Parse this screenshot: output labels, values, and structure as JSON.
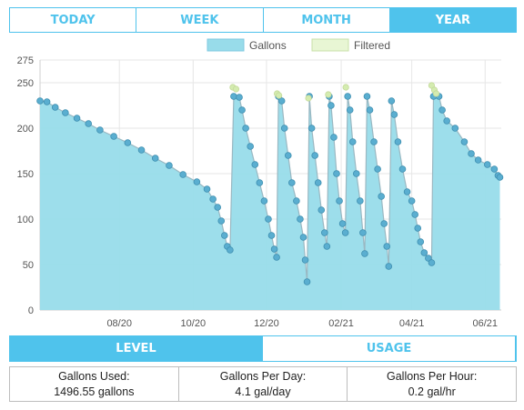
{
  "range_tabs": [
    "TODAY",
    "WEEK",
    "MONTH",
    "YEAR"
  ],
  "range_active": "YEAR",
  "view_tabs": [
    "LEVEL",
    "USAGE"
  ],
  "view_active": "LEVEL",
  "colors": {
    "accent": "#4fc3ec",
    "gallons_fill": "#98dcea",
    "gallons_point": "#5aaed0",
    "filtered_fill": "#e8f6d4",
    "filtered_point": "#d4ecb0"
  },
  "stats": [
    {
      "label": "Gallons Used:",
      "value": "1496.55 gallons"
    },
    {
      "label": "Gallons Per Day:",
      "value": "4.1 gal/day"
    },
    {
      "label": "Gallons Per Hour:",
      "value": "0.2 gal/hr"
    }
  ],
  "chart_data": {
    "type": "area",
    "legend": [
      {
        "name": "Gallons",
        "color": "#98dcea"
      },
      {
        "name": "Filtered",
        "color": "#e8f6d4"
      }
    ],
    "legend_position": "top-center",
    "grid": true,
    "ylim": [
      0,
      275
    ],
    "yticks": [
      0,
      50,
      100,
      150,
      200,
      250,
      275
    ],
    "xlim": [
      0,
      100
    ],
    "xticks": [
      {
        "label": "08/20",
        "x": 17.2
      },
      {
        "label": "10/20",
        "x": 33.2
      },
      {
        "label": "12/20",
        "x": 49.1
      },
      {
        "label": "02/21",
        "x": 65.3
      },
      {
        "label": "04/21",
        "x": 80.6
      },
      {
        "label": "06/21",
        "x": 96.5
      }
    ],
    "series": [
      {
        "name": "Gallons",
        "points": [
          [
            0,
            230
          ],
          [
            1.5,
            229
          ],
          [
            3.3,
            223
          ],
          [
            5.5,
            217
          ],
          [
            8,
            211
          ],
          [
            10.5,
            205
          ],
          [
            13,
            198
          ],
          [
            16,
            191
          ],
          [
            19,
            184
          ],
          [
            22,
            176
          ],
          [
            25,
            167
          ],
          [
            28,
            159
          ],
          [
            31,
            149
          ],
          [
            34,
            141
          ],
          [
            36.2,
            133
          ],
          [
            37.5,
            122
          ],
          [
            38.5,
            113
          ],
          [
            39.3,
            98
          ],
          [
            40,
            82
          ],
          [
            40.6,
            70
          ],
          [
            41.2,
            66
          ],
          [
            42,
            235
          ],
          [
            43.2,
            234
          ],
          [
            43.8,
            220
          ],
          [
            44.6,
            200
          ],
          [
            45.6,
            180
          ],
          [
            46.6,
            160
          ],
          [
            47.6,
            140
          ],
          [
            48.6,
            120
          ],
          [
            49.5,
            100
          ],
          [
            50.2,
            82
          ],
          [
            50.8,
            67
          ],
          [
            51.3,
            58
          ],
          [
            51.7,
            235
          ],
          [
            52.4,
            230
          ],
          [
            53,
            200
          ],
          [
            53.8,
            170
          ],
          [
            54.6,
            140
          ],
          [
            55.6,
            120
          ],
          [
            56.4,
            100
          ],
          [
            57.1,
            80
          ],
          [
            57.5,
            55
          ],
          [
            57.9,
            31
          ],
          [
            58.4,
            235
          ],
          [
            58.9,
            200
          ],
          [
            59.6,
            170
          ],
          [
            60.3,
            140
          ],
          [
            61,
            110
          ],
          [
            61.7,
            85
          ],
          [
            62.2,
            70
          ],
          [
            62.7,
            235
          ],
          [
            63.1,
            225
          ],
          [
            63.7,
            190
          ],
          [
            64.3,
            150
          ],
          [
            64.9,
            120
          ],
          [
            65.6,
            95
          ],
          [
            66.2,
            85
          ],
          [
            66.7,
            235
          ],
          [
            67.2,
            220
          ],
          [
            67.8,
            185
          ],
          [
            68.6,
            150
          ],
          [
            69.4,
            120
          ],
          [
            70,
            85
          ],
          [
            70.4,
            62
          ],
          [
            70.9,
            235
          ],
          [
            71.5,
            220
          ],
          [
            72.4,
            185
          ],
          [
            73.2,
            155
          ],
          [
            74,
            125
          ],
          [
            74.6,
            95
          ],
          [
            75.2,
            70
          ],
          [
            75.6,
            48
          ],
          [
            76.2,
            230
          ],
          [
            76.8,
            215
          ],
          [
            77.6,
            185
          ],
          [
            78.6,
            155
          ],
          [
            79.6,
            130
          ],
          [
            80.6,
            120
          ],
          [
            81.3,
            105
          ],
          [
            81.9,
            90
          ],
          [
            82.5,
            75
          ],
          [
            83.3,
            63
          ],
          [
            84.2,
            57
          ],
          [
            84.9,
            52
          ],
          [
            85.3,
            235
          ],
          [
            86.5,
            235
          ],
          [
            87.2,
            220
          ],
          [
            88.2,
            208
          ],
          [
            90,
            200
          ],
          [
            92,
            185
          ],
          [
            93.5,
            172
          ],
          [
            95,
            165
          ],
          [
            97,
            160
          ],
          [
            98.5,
            155
          ],
          [
            99.3,
            148
          ],
          [
            99.7,
            146
          ]
        ]
      },
      {
        "name": "Filtered",
        "points": [
          [
            41.8,
            245
          ],
          [
            42.5,
            243
          ],
          [
            51.4,
            238
          ],
          [
            51.8,
            236
          ],
          [
            58.2,
            233
          ],
          [
            62.5,
            237
          ],
          [
            66.3,
            245
          ],
          [
            84.9,
            247
          ],
          [
            85.5,
            242
          ],
          [
            85.9,
            238
          ]
        ]
      }
    ]
  }
}
